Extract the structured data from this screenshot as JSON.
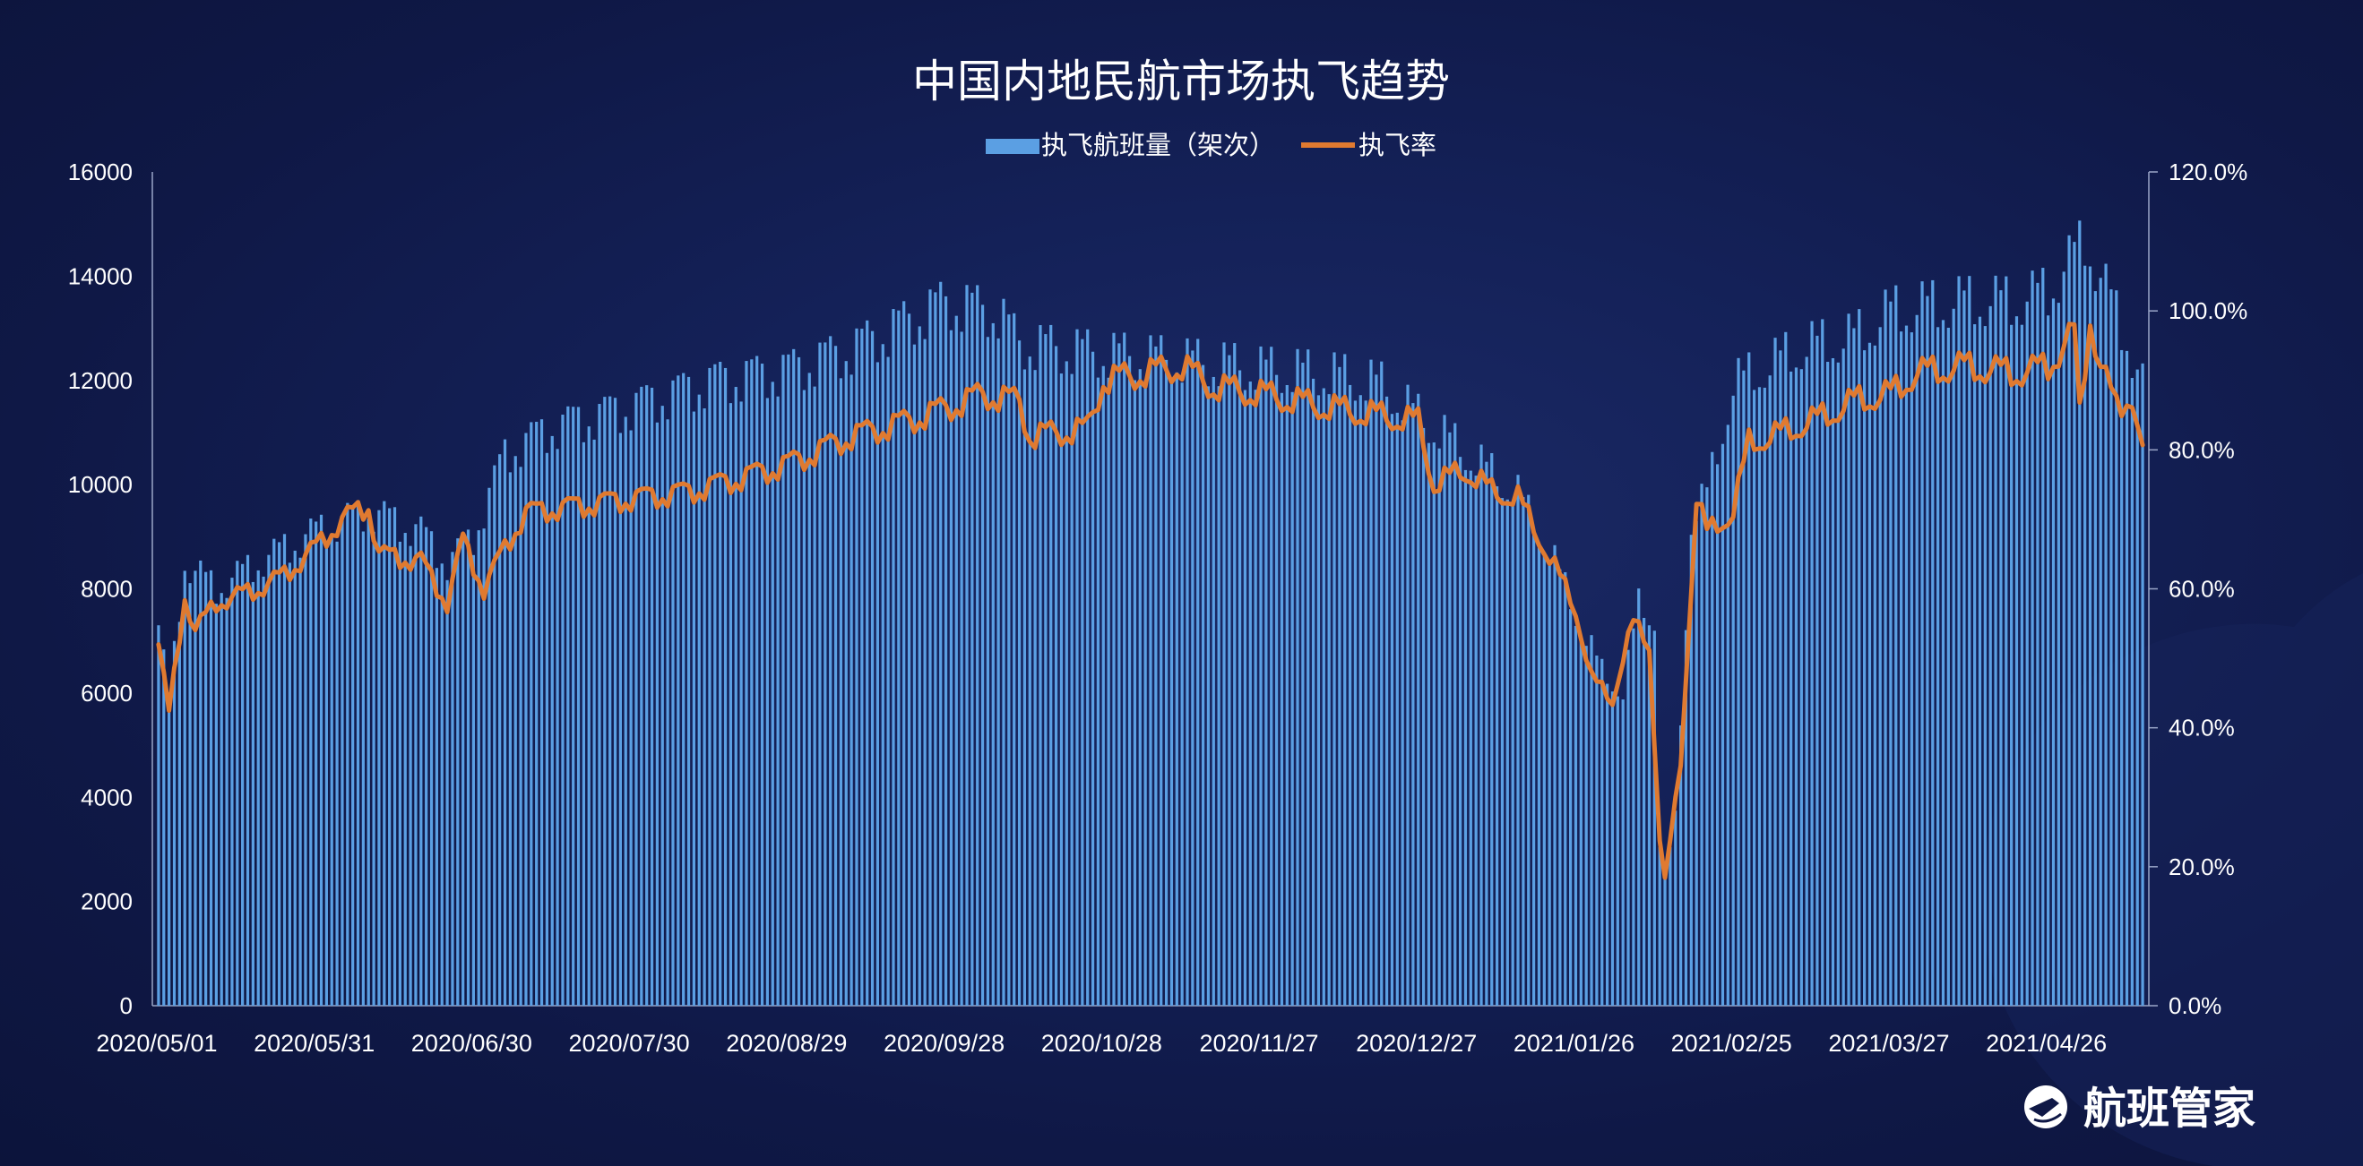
{
  "chart_data": {
    "type": "bar+line",
    "title": "中国内地民航市场执飞趋势",
    "legend": {
      "placement": "top-center"
    },
    "series": [
      {
        "name": "执飞航班量（架次）",
        "type": "bar",
        "axis": "left",
        "color": "#5b9fe3"
      },
      {
        "name": "执飞率",
        "type": "line",
        "axis": "right",
        "color": "#e07a30"
      }
    ],
    "x_range": [
      "2020/05/01",
      "2021/05/14"
    ],
    "x_tick_labels": [
      "2020/05/01",
      "2020/05/31",
      "2020/06/30",
      "2020/07/30",
      "2020/08/29",
      "2020/09/28",
      "2020/10/28",
      "2020/11/27",
      "2020/12/27",
      "2021/01/26",
      "2021/02/25",
      "2021/03/27",
      "2021/04/26"
    ],
    "y_left": {
      "range": [
        0,
        16000
      ],
      "ticks": [
        "0",
        "2000",
        "4000",
        "6000",
        "8000",
        "10000",
        "12000",
        "14000",
        "16000"
      ]
    },
    "y_right": {
      "range": [
        0,
        1.2
      ],
      "ticks": [
        "0.0%",
        "20.0%",
        "40.0%",
        "60.0%",
        "80.0%",
        "100.0%",
        "120.0%"
      ]
    },
    "flights_keypoints": [
      [
        "2020/05/01",
        7300
      ],
      [
        "2020/05/03",
        5900
      ],
      [
        "2020/05/06",
        8500
      ],
      [
        "2020/05/12",
        8000
      ],
      [
        "2020/05/20",
        8500
      ],
      [
        "2020/05/31",
        9100
      ],
      [
        "2020/06/10",
        9500
      ],
      [
        "2020/06/20",
        9100
      ],
      [
        "2020/06/25",
        8500
      ],
      [
        "2020/06/30",
        9000
      ],
      [
        "2020/07/06",
        10600
      ],
      [
        "2020/07/15",
        11100
      ],
      [
        "2020/07/30",
        11500
      ],
      [
        "2020/08/15",
        12000
      ],
      [
        "2020/08/29",
        12200
      ],
      [
        "2020/09/10",
        12600
      ],
      [
        "2020/09/20",
        13100
      ],
      [
        "2020/09/28",
        13500
      ],
      [
        "2020/10/08",
        13300
      ],
      [
        "2020/10/12",
        12700
      ],
      [
        "2020/10/28",
        12500
      ],
      [
        "2020/11/10",
        12400
      ],
      [
        "2020/11/27",
        12200
      ],
      [
        "2020/12/10",
        12100
      ],
      [
        "2020/12/20",
        11900
      ],
      [
        "2020/12/27",
        11300
      ],
      [
        "2021/01/05",
        10600
      ],
      [
        "2021/01/15",
        9800
      ],
      [
        "2021/01/22",
        8500
      ],
      [
        "2021/01/26",
        7500
      ],
      [
        "2021/01/31",
        6400
      ],
      [
        "2021/02/04",
        6000
      ],
      [
        "2021/02/07",
        7700
      ],
      [
        "2021/02/10",
        7400
      ],
      [
        "2021/02/11",
        3100
      ],
      [
        "2021/02/12",
        2400
      ],
      [
        "2021/02/14",
        3600
      ],
      [
        "2021/02/17",
        9300
      ],
      [
        "2021/02/20",
        9800
      ],
      [
        "2021/02/25",
        11900
      ],
      [
        "2021/03/10",
        12600
      ],
      [
        "2021/03/20",
        12800
      ],
      [
        "2021/03/27",
        13300
      ],
      [
        "2021/04/10",
        13500
      ],
      [
        "2021/04/20",
        13500
      ],
      [
        "2021/04/26",
        13700
      ],
      [
        "2021/05/01",
        14400
      ],
      [
        "2021/05/03",
        14700
      ],
      [
        "2021/05/08",
        13500
      ],
      [
        "2021/05/11",
        12800
      ],
      [
        "2021/05/14",
        11900
      ]
    ],
    "rate_keypoints": [
      [
        "2020/05/01",
        0.52
      ],
      [
        "2020/05/03",
        0.42
      ],
      [
        "2020/05/06",
        0.59
      ],
      [
        "2020/05/08",
        0.54
      ],
      [
        "2020/05/12",
        0.58
      ],
      [
        "2020/05/20",
        0.6
      ],
      [
        "2020/05/25",
        0.62
      ],
      [
        "2020/05/31",
        0.66
      ],
      [
        "2020/06/05",
        0.7
      ],
      [
        "2020/06/10",
        0.72
      ],
      [
        "2020/06/12",
        0.65
      ],
      [
        "2020/06/20",
        0.64
      ],
      [
        "2020/06/25",
        0.58
      ],
      [
        "2020/06/28",
        0.67
      ],
      [
        "2020/07/02",
        0.6
      ],
      [
        "2020/07/06",
        0.66
      ],
      [
        "2020/07/10",
        0.71
      ],
      [
        "2020/07/20",
        0.72
      ],
      [
        "2020/07/30",
        0.73
      ],
      [
        "2020/08/10",
        0.74
      ],
      [
        "2020/08/20",
        0.76
      ],
      [
        "2020/08/29",
        0.78
      ],
      [
        "2020/09/10",
        0.82
      ],
      [
        "2020/09/20",
        0.84
      ],
      [
        "2020/09/28",
        0.86
      ],
      [
        "2020/10/05",
        0.88
      ],
      [
        "2020/10/12",
        0.87
      ],
      [
        "2020/10/14",
        0.82
      ],
      [
        "2020/10/25",
        0.83
      ],
      [
        "2020/10/28",
        0.9
      ],
      [
        "2020/11/05",
        0.91
      ],
      [
        "2020/11/12",
        0.92
      ],
      [
        "2020/11/18",
        0.89
      ],
      [
        "2020/11/27",
        0.88
      ],
      [
        "2020/12/10",
        0.86
      ],
      [
        "2020/12/27",
        0.84
      ],
      [
        "2020/12/30",
        0.75
      ],
      [
        "2021/01/05",
        0.77
      ],
      [
        "2021/01/10",
        0.74
      ],
      [
        "2021/01/15",
        0.73
      ],
      [
        "2021/01/20",
        0.66
      ],
      [
        "2021/01/26",
        0.57
      ],
      [
        "2021/01/29",
        0.47
      ],
      [
        "2021/02/02",
        0.44
      ],
      [
        "2021/02/04",
        0.5
      ],
      [
        "2021/02/06",
        0.55
      ],
      [
        "2021/02/09",
        0.52
      ],
      [
        "2021/02/11",
        0.24
      ],
      [
        "2021/02/12",
        0.18
      ],
      [
        "2021/02/15",
        0.35
      ],
      [
        "2021/02/18",
        0.73
      ],
      [
        "2021/02/20",
        0.68
      ],
      [
        "2021/02/25",
        0.71
      ],
      [
        "2021/02/28",
        0.81
      ],
      [
        "2021/03/05",
        0.82
      ],
      [
        "2021/03/15",
        0.85
      ],
      [
        "2021/03/20",
        0.87
      ],
      [
        "2021/03/27",
        0.88
      ],
      [
        "2021/04/01",
        0.91
      ],
      [
        "2021/04/10",
        0.92
      ],
      [
        "2021/04/20",
        0.91
      ],
      [
        "2021/04/26",
        0.92
      ],
      [
        "2021/05/01",
        0.97
      ],
      [
        "2021/05/02",
        0.85
      ],
      [
        "2021/05/04",
        0.99
      ],
      [
        "2021/05/06",
        0.92
      ],
      [
        "2021/05/09",
        0.86
      ],
      [
        "2021/05/12",
        0.88
      ],
      [
        "2021/05/14",
        0.79
      ]
    ]
  },
  "brand": {
    "name": "航班管家",
    "icon": "flight-manager-logo-icon"
  }
}
